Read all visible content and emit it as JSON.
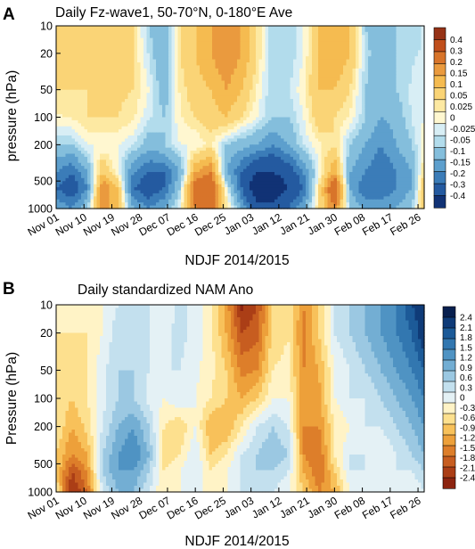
{
  "figure": {
    "panels": [
      {
        "letter": "A",
        "title": "Daily Fz-wave1, 50-70°N, 0-180°E Ave",
        "ylabel": "pressure (hPa)",
        "xlabel": "NDJF 2014/2015"
      },
      {
        "letter": "B",
        "title": "Daily standardized NAM Ano",
        "ylabel": "Pressure (hPa)",
        "xlabel": "NDJF 2014/2015"
      }
    ]
  },
  "chart_data": [
    {
      "type": "heatmap",
      "title": "Daily Fz-wave1, 50-70°N, 0-180°E Ave",
      "xlabel": "NDJF 2014/2015",
      "ylabel": "pressure (hPa)",
      "x_tick_labels": [
        "Nov 01",
        "Nov 10",
        "Nov 19",
        "Nov 28",
        "Dec 07",
        "Dec 16",
        "Dec 25",
        "Jan 03",
        "Jan 12",
        "Jan 21",
        "Jan 30",
        "Feb 08",
        "Feb 17",
        "Feb 26"
      ],
      "x_range": [
        "Nov 01",
        "Feb 28"
      ],
      "y_tick_labels": [
        "10",
        "20",
        "50",
        "100",
        "200",
        "500",
        "1000"
      ],
      "y_scale": "log",
      "y_reversed": true,
      "ylim": [
        10,
        1000
      ],
      "colorbar_levels": [
        "0.4",
        "0.3",
        "0.2",
        "0.15",
        "0.1",
        "0.05",
        "0.025",
        "0",
        "-0.025",
        "-0.05",
        "-0.1",
        "-0.15",
        "-0.2",
        "-0.3",
        "-0.4"
      ],
      "colorbar_colors": [
        "#963216",
        "#c04f1c",
        "#d8742a",
        "#ea9a3e",
        "#f5bb50",
        "#fad476",
        "#fde9a2",
        "#fff7d0",
        "#d8eef5",
        "#b2dcec",
        "#84bedc",
        "#5d9fcd",
        "#3b7cb8",
        "#245aa0",
        "#113275"
      ],
      "field_grid": {
        "x_days": [
          0,
          5,
          10,
          15,
          20,
          25,
          30,
          35,
          40,
          45,
          50,
          55,
          60,
          65,
          70,
          75,
          80,
          85,
          90,
          95,
          100,
          105,
          110,
          115,
          119
        ],
        "p_levels_hPa": [
          10,
          20,
          50,
          100,
          200,
          400,
          600,
          1000
        ],
        "values": [
          [
            0.05,
            0.06,
            0.05,
            0.1,
            0.08,
            0.05,
            -0.05,
            -0.1,
            0.05,
            0.1,
            0.15,
            0.2,
            0.15,
            0.05,
            -0.05,
            -0.05,
            0.0,
            0.1,
            0.15,
            0.1,
            -0.05,
            -0.1,
            -0.05,
            -0.05,
            -0.02
          ],
          [
            0.05,
            0.05,
            0.05,
            0.08,
            0.08,
            0.05,
            -0.03,
            -0.1,
            0.05,
            0.1,
            0.15,
            0.2,
            0.15,
            0.05,
            -0.05,
            -0.05,
            0.0,
            0.1,
            0.15,
            0.1,
            -0.03,
            -0.1,
            -0.05,
            -0.03,
            -0.02
          ],
          [
            0.05,
            0.05,
            0.05,
            0.06,
            0.06,
            0.05,
            0.0,
            -0.08,
            0.03,
            0.08,
            0.1,
            0.15,
            0.1,
            0.02,
            -0.05,
            -0.03,
            0.02,
            0.1,
            0.1,
            0.05,
            -0.05,
            -0.1,
            -0.05,
            -0.02,
            0.0
          ],
          [
            0.02,
            0.03,
            0.05,
            0.05,
            0.05,
            0.03,
            -0.02,
            -0.05,
            0.02,
            0.05,
            0.08,
            0.1,
            0.05,
            0.0,
            -0.05,
            -0.05,
            0.0,
            0.08,
            0.05,
            0.02,
            -0.05,
            -0.1,
            -0.08,
            -0.02,
            0.0
          ],
          [
            -0.05,
            -0.05,
            0.0,
            0.0,
            0.0,
            -0.02,
            -0.08,
            -0.05,
            0.0,
            0.0,
            0.03,
            -0.05,
            -0.08,
            -0.1,
            -0.15,
            -0.1,
            -0.02,
            0.02,
            0.05,
            -0.05,
            -0.1,
            -0.15,
            -0.1,
            -0.05,
            0.02
          ],
          [
            -0.15,
            -0.2,
            -0.1,
            0.1,
            0.0,
            -0.15,
            -0.2,
            -0.2,
            -0.1,
            0.15,
            0.2,
            -0.1,
            -0.2,
            -0.3,
            -0.3,
            -0.25,
            -0.15,
            0.0,
            0.15,
            -0.1,
            -0.15,
            -0.2,
            -0.15,
            -0.1,
            0.05
          ],
          [
            -0.2,
            -0.25,
            -0.15,
            0.2,
            0.1,
            -0.2,
            -0.25,
            -0.2,
            -0.05,
            0.25,
            0.3,
            0.0,
            -0.2,
            -0.4,
            -0.4,
            -0.3,
            -0.2,
            0.05,
            0.3,
            -0.1,
            -0.2,
            -0.2,
            -0.15,
            -0.1,
            0.1
          ],
          [
            -0.1,
            -0.15,
            -0.05,
            0.2,
            0.1,
            -0.1,
            -0.15,
            -0.1,
            0.0,
            0.2,
            0.25,
            0.05,
            -0.1,
            -0.25,
            -0.25,
            -0.2,
            -0.1,
            0.05,
            0.2,
            -0.05,
            -0.1,
            -0.1,
            -0.1,
            -0.05,
            0.1
          ]
        ]
      }
    },
    {
      "type": "heatmap",
      "title": "Daily standardized NAM Ano",
      "xlabel": "NDJF 2014/2015",
      "ylabel": "Pressure (hPa)",
      "x_tick_labels": [
        "Nov 01",
        "Nov 10",
        "Nov 19",
        "Nov 28",
        "Dec 07",
        "Dec 16",
        "Dec 25",
        "Jan 03",
        "Jan 12",
        "Jan 21",
        "Jan 30",
        "Feb 08",
        "Feb 17",
        "Feb 26"
      ],
      "x_range": [
        "Nov 01",
        "Feb 28"
      ],
      "y_tick_labels": [
        "10",
        "20",
        "50",
        "100",
        "200",
        "500",
        "1000"
      ],
      "y_scale": "log",
      "y_reversed": true,
      "ylim": [
        10,
        1000
      ],
      "colorbar_levels": [
        "2.4",
        "2.1",
        "1.8",
        "1.5",
        "1.2",
        "0.9",
        "0.6",
        "0.3",
        "0",
        "-0.3",
        "-0.6",
        "-0.9",
        "-1.2",
        "-1.5",
        "-1.8",
        "-2.1",
        "-2.4"
      ],
      "colorbar_colors": [
        "#08204f",
        "#0f3b78",
        "#1c5a98",
        "#3277b0",
        "#4f93c3",
        "#73aed3",
        "#9bc8e2",
        "#c3e0ee",
        "#e4f1f5",
        "#fff3c6",
        "#fde08e",
        "#f8c15a",
        "#eda03a",
        "#dd7e2a",
        "#c75d20",
        "#ab3e16",
        "#8c2410"
      ],
      "field_grid": {
        "x_days": [
          0,
          5,
          10,
          15,
          20,
          25,
          30,
          35,
          40,
          45,
          50,
          55,
          60,
          65,
          70,
          75,
          80,
          85,
          90,
          95,
          100,
          105,
          110,
          115,
          119
        ],
        "p_levels_hPa": [
          10,
          20,
          50,
          100,
          200,
          400,
          600,
          1000
        ],
        "values": [
          [
            -0.2,
            -0.3,
            -0.2,
            0.0,
            0.3,
            0.5,
            0.3,
            0.1,
            0.4,
            0.2,
            -0.3,
            -1.0,
            -2.2,
            -1.8,
            -0.6,
            -0.3,
            -1.2,
            -0.6,
            0.3,
            0.6,
            0.9,
            1.2,
            1.5,
            2.1,
            2.4
          ],
          [
            -0.3,
            -0.3,
            -0.3,
            0.0,
            0.5,
            0.6,
            0.3,
            0.2,
            0.4,
            0.2,
            -0.2,
            -0.9,
            -1.8,
            -1.6,
            -0.5,
            -0.3,
            -1.3,
            -0.6,
            0.3,
            0.6,
            0.9,
            1.2,
            1.5,
            1.8,
            2.4
          ],
          [
            -0.3,
            -0.5,
            -0.3,
            0.2,
            0.6,
            0.6,
            0.3,
            0.3,
            0.3,
            0.1,
            -0.2,
            -0.6,
            -1.3,
            -1.2,
            -0.3,
            -0.2,
            -1.2,
            -0.9,
            0.0,
            0.3,
            0.6,
            0.9,
            1.2,
            1.5,
            1.8
          ],
          [
            -0.3,
            -0.6,
            -0.3,
            0.2,
            0.6,
            0.6,
            0.2,
            0.0,
            0.3,
            0.0,
            -0.3,
            -0.6,
            -0.9,
            -0.6,
            0.0,
            0.0,
            -1.2,
            -1.0,
            0.0,
            0.3,
            0.3,
            0.6,
            0.9,
            1.2,
            1.5
          ],
          [
            -0.3,
            -0.9,
            -0.5,
            0.3,
            0.9,
            1.2,
            0.6,
            -0.3,
            -0.6,
            0.0,
            -0.9,
            -0.9,
            -0.3,
            0.3,
            0.6,
            0.3,
            -1.2,
            -1.2,
            -0.3,
            0.0,
            0.3,
            0.3,
            0.6,
            0.9,
            1.2
          ],
          [
            -0.6,
            -1.2,
            -0.9,
            0.6,
            1.2,
            1.5,
            0.9,
            -0.6,
            -0.3,
            0.3,
            -0.6,
            -0.3,
            0.3,
            0.6,
            0.9,
            0.6,
            -1.2,
            -1.5,
            -0.3,
            0.3,
            0.3,
            0.0,
            0.3,
            0.6,
            0.9
          ],
          [
            -0.6,
            -1.8,
            -1.2,
            0.6,
            1.2,
            1.2,
            0.6,
            -0.3,
            0.0,
            0.3,
            -0.3,
            0.0,
            0.3,
            0.6,
            0.6,
            0.3,
            -0.9,
            -1.5,
            -0.6,
            0.3,
            0.3,
            0.0,
            0.3,
            0.3,
            0.6
          ],
          [
            -0.3,
            -2.2,
            -1.5,
            0.3,
            0.9,
            0.9,
            0.3,
            -0.3,
            0.0,
            0.3,
            -0.3,
            0.0,
            0.3,
            0.3,
            0.3,
            0.0,
            -0.6,
            -1.2,
            -0.9,
            0.0,
            0.3,
            0.0,
            0.0,
            0.0,
            0.3
          ]
        ]
      }
    }
  ]
}
